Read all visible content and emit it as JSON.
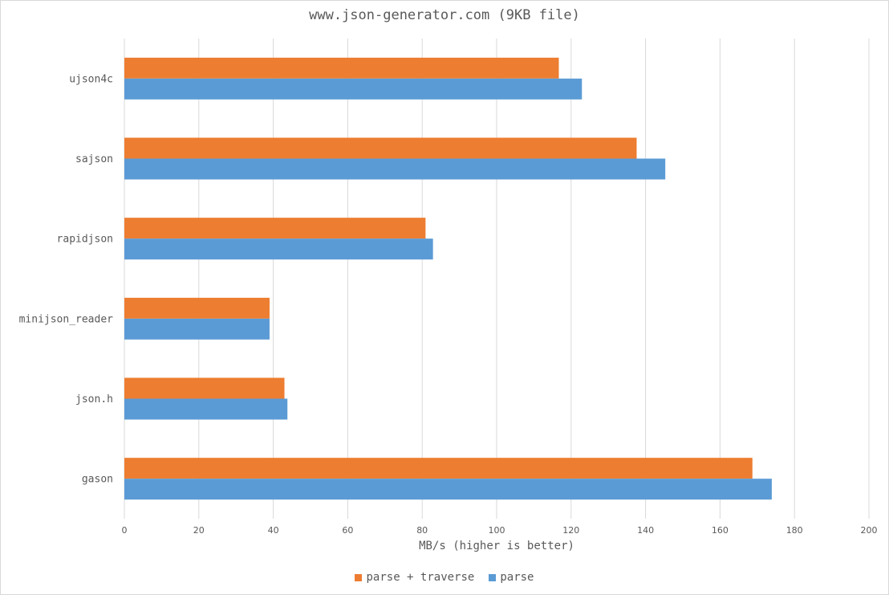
{
  "chart_data": {
    "type": "bar",
    "orientation": "horizontal",
    "title": "www.json-generator.com (9KB file)",
    "xlabel": "MB/s (higher is better)",
    "ylabel": "",
    "xlim": [
      0,
      200
    ],
    "x_ticks": [
      "0",
      "20",
      "40",
      "60",
      "80",
      "100",
      "120",
      "140",
      "160",
      "180",
      "200"
    ],
    "categories": [
      "ujson4c",
      "sajson",
      "rapidjson",
      "minijson_reader",
      "json.h",
      "gason"
    ],
    "series": [
      {
        "name": "parse + traverse",
        "color": "#ed7d31",
        "values": [
          116.7,
          137.6,
          80.9,
          39.0,
          43.0,
          168.7
        ]
      },
      {
        "name": "parse",
        "color": "#5b9bd5",
        "values": [
          122.9,
          145.3,
          82.9,
          39.0,
          43.8,
          173.9
        ]
      }
    ],
    "grid": true,
    "legend_position": "bottom"
  }
}
